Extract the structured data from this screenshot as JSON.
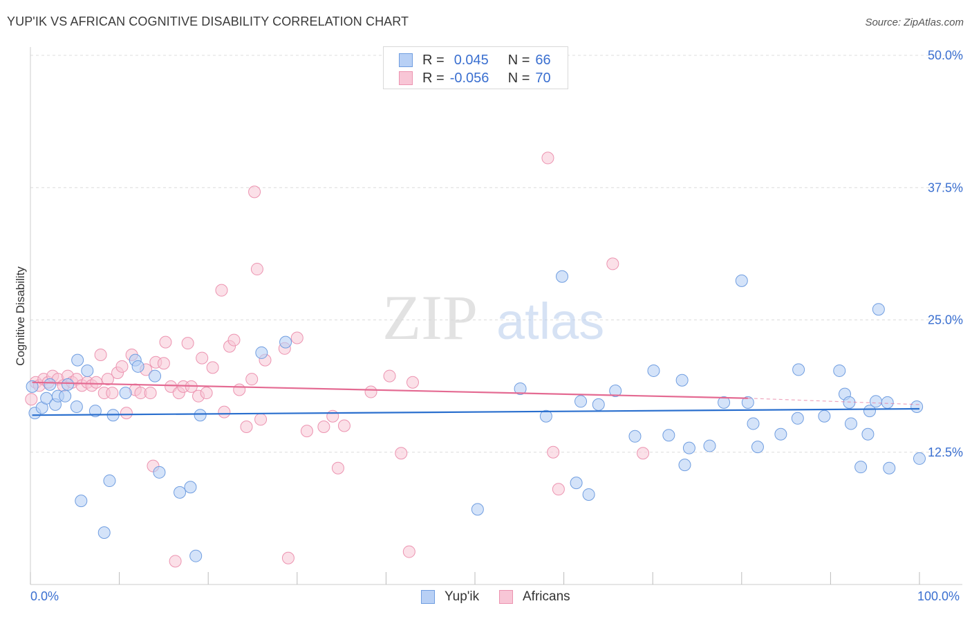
{
  "title": "YUP'IK VS AFRICAN COGNITIVE DISABILITY CORRELATION CHART",
  "source": "Source: ZipAtlas.com",
  "watermark": {
    "zip": "ZIP",
    "atlas": "atlas"
  },
  "legend": {
    "rows": [
      {
        "r_label": "R =",
        "r_value": "0.045",
        "n_label": "N =",
        "n_value": "66"
      },
      {
        "r_label": "R =",
        "r_value": "-0.056",
        "n_label": "N =",
        "n_value": "70"
      }
    ]
  },
  "bottom_legend": {
    "yupik": "Yup'ik",
    "africans": "Africans"
  },
  "x_axis": {
    "min_label": "0.0%",
    "max_label": "100.0%"
  },
  "chart_data": {
    "type": "scatter",
    "title": "YUP'IK VS AFRICAN COGNITIVE DISABILITY CORRELATION CHART",
    "xlabel": "",
    "ylabel": "Cognitive Disability",
    "xlim": [
      0,
      100
    ],
    "ylim": [
      0,
      50
    ],
    "y_ticks": [
      12.5,
      25.0,
      37.5,
      50.0
    ],
    "y_tick_labels": [
      "12.5%",
      "25.0%",
      "37.5%",
      "50.0%"
    ],
    "x_tick_labels": [
      "0.0%",
      "100.0%"
    ],
    "grid": true,
    "legend_position": "top-center",
    "colors": {
      "yupik_fill": "#b8d0f5",
      "yupik_stroke": "#6f9de0",
      "yupik_line": "#2a6fce",
      "africans_fill": "#f8c6d6",
      "africans_stroke": "#ec93b0",
      "africans_line": "#e46a92",
      "axis_label": "#3a6fd0",
      "grid": "#dcdcdc"
    },
    "series": [
      {
        "name": "Yup'ik",
        "r": 0.045,
        "n": 66,
        "trend": [
          [
            0.2,
            16.0
          ],
          [
            100,
            16.6
          ]
        ],
        "points": [
          [
            0.2,
            18.7
          ],
          [
            0.5,
            16.2
          ],
          [
            1.3,
            16.7
          ],
          [
            1.8,
            17.6
          ],
          [
            2.2,
            18.9
          ],
          [
            2.8,
            17.0
          ],
          [
            3.1,
            17.8
          ],
          [
            3.9,
            17.8
          ],
          [
            4.2,
            18.9
          ],
          [
            5.2,
            16.8
          ],
          [
            5.3,
            21.2
          ],
          [
            5.7,
            7.9
          ],
          [
            6.4,
            20.2
          ],
          [
            7.3,
            16.4
          ],
          [
            8.3,
            4.9
          ],
          [
            8.9,
            9.8
          ],
          [
            9.3,
            16.0
          ],
          [
            10.7,
            18.1
          ],
          [
            11.8,
            21.2
          ],
          [
            12.1,
            20.6
          ],
          [
            14.0,
            19.7
          ],
          [
            14.5,
            10.6
          ],
          [
            16.8,
            8.7
          ],
          [
            18.0,
            9.2
          ],
          [
            18.6,
            2.7
          ],
          [
            19.1,
            16.0
          ],
          [
            26.0,
            21.9
          ],
          [
            28.7,
            22.9
          ],
          [
            50.3,
            7.1
          ],
          [
            55.1,
            18.5
          ],
          [
            58.0,
            15.9
          ],
          [
            59.8,
            29.1
          ],
          [
            61.4,
            9.6
          ],
          [
            61.9,
            17.3
          ],
          [
            62.8,
            8.5
          ],
          [
            63.9,
            17.0
          ],
          [
            65.8,
            18.3
          ],
          [
            68.0,
            14.0
          ],
          [
            70.1,
            20.2
          ],
          [
            71.8,
            14.1
          ],
          [
            73.3,
            19.3
          ],
          [
            73.6,
            11.3
          ],
          [
            74.1,
            12.9
          ],
          [
            76.4,
            13.1
          ],
          [
            78.0,
            17.2
          ],
          [
            80.7,
            17.2
          ],
          [
            80.0,
            28.7
          ],
          [
            81.3,
            15.2
          ],
          [
            81.8,
            13.0
          ],
          [
            84.4,
            14.2
          ],
          [
            86.3,
            15.7
          ],
          [
            86.4,
            20.3
          ],
          [
            89.3,
            15.9
          ],
          [
            91.0,
            20.2
          ],
          [
            91.6,
            18.0
          ],
          [
            92.1,
            17.2
          ],
          [
            92.3,
            15.2
          ],
          [
            93.4,
            11.1
          ],
          [
            94.2,
            14.2
          ],
          [
            94.4,
            16.4
          ],
          [
            95.1,
            17.3
          ],
          [
            95.4,
            26.0
          ],
          [
            96.4,
            17.2
          ],
          [
            96.6,
            11.0
          ],
          [
            99.7,
            16.8
          ],
          [
            100.0,
            11.9
          ]
        ]
      },
      {
        "name": "Africans",
        "r": -0.056,
        "n": 70,
        "trend": [
          [
            0.2,
            19.1
          ],
          [
            80.7,
            17.6
          ]
        ],
        "trend_dashed": [
          [
            80.7,
            17.6
          ],
          [
            100,
            17.0
          ]
        ],
        "points": [
          [
            0.1,
            17.5
          ],
          [
            0.6,
            19.1
          ],
          [
            1.0,
            18.8
          ],
          [
            1.5,
            19.4
          ],
          [
            2.0,
            19.1
          ],
          [
            2.5,
            19.7
          ],
          [
            3.1,
            19.4
          ],
          [
            3.7,
            18.8
          ],
          [
            4.2,
            19.7
          ],
          [
            4.7,
            19.1
          ],
          [
            5.2,
            19.4
          ],
          [
            5.8,
            18.8
          ],
          [
            6.4,
            19.1
          ],
          [
            6.9,
            18.8
          ],
          [
            7.4,
            19.1
          ],
          [
            7.9,
            21.7
          ],
          [
            8.3,
            18.1
          ],
          [
            8.7,
            19.4
          ],
          [
            9.2,
            18.1
          ],
          [
            9.8,
            20.0
          ],
          [
            10.3,
            20.6
          ],
          [
            10.8,
            16.2
          ],
          [
            11.4,
            21.7
          ],
          [
            11.8,
            18.4
          ],
          [
            12.4,
            18.1
          ],
          [
            13.0,
            20.3
          ],
          [
            13.5,
            18.1
          ],
          [
            13.8,
            11.2
          ],
          [
            14.1,
            21.0
          ],
          [
            15.0,
            20.9
          ],
          [
            15.2,
            22.9
          ],
          [
            15.8,
            18.7
          ],
          [
            16.3,
            2.2
          ],
          [
            16.7,
            18.1
          ],
          [
            17.2,
            18.7
          ],
          [
            17.7,
            22.8
          ],
          [
            18.1,
            18.7
          ],
          [
            18.9,
            17.8
          ],
          [
            19.3,
            21.4
          ],
          [
            19.8,
            18.1
          ],
          [
            20.5,
            20.5
          ],
          [
            21.5,
            27.8
          ],
          [
            21.8,
            16.3
          ],
          [
            22.4,
            22.5
          ],
          [
            22.9,
            23.1
          ],
          [
            23.5,
            18.4
          ],
          [
            24.3,
            14.9
          ],
          [
            24.9,
            19.4
          ],
          [
            25.2,
            37.1
          ],
          [
            25.5,
            29.8
          ],
          [
            25.9,
            15.6
          ],
          [
            26.4,
            21.2
          ],
          [
            28.6,
            22.3
          ],
          [
            29.0,
            2.5
          ],
          [
            30.0,
            23.3
          ],
          [
            31.1,
            14.5
          ],
          [
            33.0,
            14.9
          ],
          [
            34.0,
            15.9
          ],
          [
            34.6,
            11.0
          ],
          [
            35.3,
            15.0
          ],
          [
            38.3,
            18.2
          ],
          [
            40.4,
            19.7
          ],
          [
            41.7,
            12.4
          ],
          [
            42.6,
            3.1
          ],
          [
            43.0,
            19.1
          ],
          [
            58.2,
            40.3
          ],
          [
            58.8,
            12.5
          ],
          [
            59.4,
            9.0
          ],
          [
            65.5,
            30.3
          ],
          [
            68.9,
            12.4
          ]
        ]
      }
    ]
  }
}
